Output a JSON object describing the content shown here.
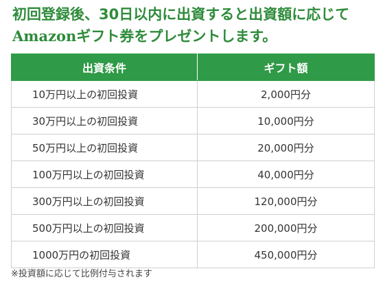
{
  "headline": {
    "line1": "初回登録後、30日以内に出資すると出資額に応じて",
    "line2": "Amazonギフト券をプレゼントします。"
  },
  "table": {
    "headers": {
      "condition": "出資条件",
      "gift": "ギフト額"
    },
    "rows": [
      {
        "condition": "10万円以上の初回投資",
        "gift": "2,000円分"
      },
      {
        "condition": "30万円以上の初回投資",
        "gift": "10,000円分"
      },
      {
        "condition": "50万円以上の初回投資",
        "gift": "20,000円分"
      },
      {
        "condition": "100万円以上の初回投資",
        "gift": "40,000円分"
      },
      {
        "condition": "300万円以上の初回投資",
        "gift": "120,000円分"
      },
      {
        "condition": "500万円以上の初回投資",
        "gift": "200,000円分"
      },
      {
        "condition": "1000万円の初回投資",
        "gift": "450,000円分"
      }
    ]
  },
  "footnote": "※投資額に応じて比例付与されます",
  "colors": {
    "headline": "#2e8b3a",
    "header_bg": "#2f9a47",
    "border": "#cfcfcf"
  }
}
